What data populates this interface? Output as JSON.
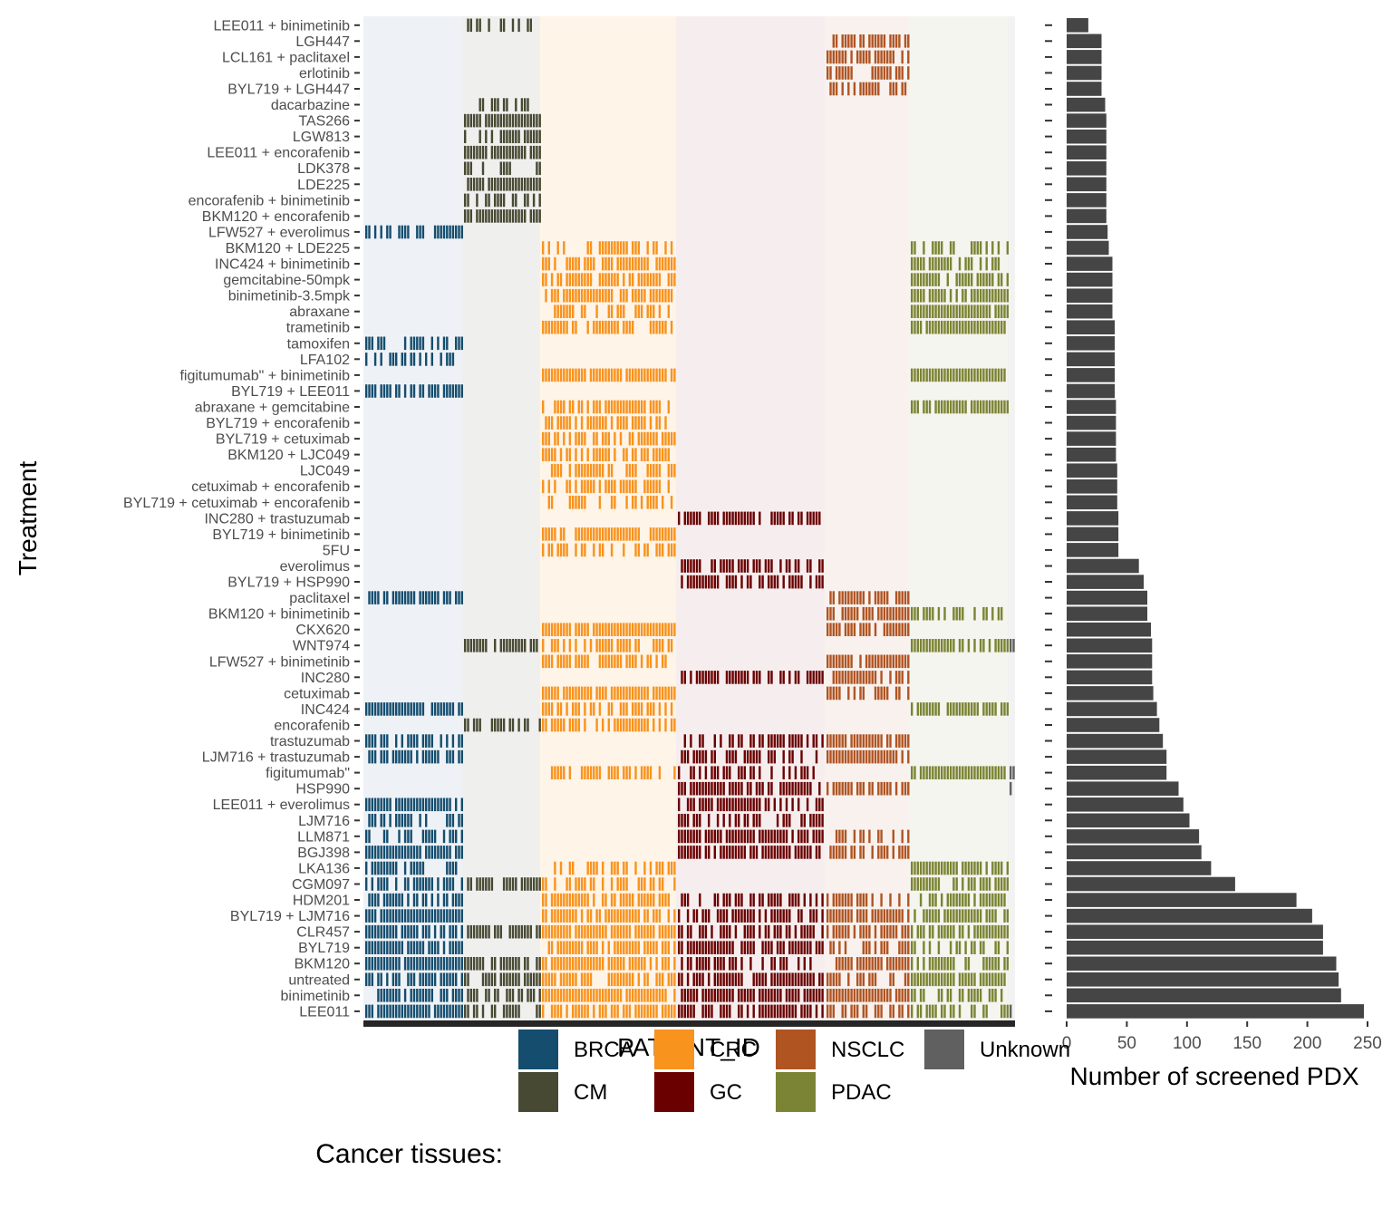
{
  "chart_data": [
    {
      "type": "heatmap",
      "xlabel": "PATIENT_ID",
      "ylabel": "Treatment",
      "x_tick_labels_shown": false,
      "y_order_top_to_bottom": [
        "LEE011 + binimetinib",
        "LGH447",
        "LCL161 + paclitaxel",
        "erlotinib",
        "BYL719 + LGH447",
        "dacarbazine",
        "TAS266",
        "LGW813",
        "LEE011 + encorafenib",
        "LDK378",
        "LDE225",
        "encorafenib + binimetinib",
        "BKM120 + encorafenib",
        "LFW527 + everolimus",
        "BKM120 + LDE225",
        "INC424 + binimetinib",
        "gemcitabine-50mpk",
        "binimetinib-3.5mpk",
        "abraxane",
        "trametinib",
        "tamoxifen",
        "LFA102",
        "figitumumab\" + binimetinib",
        "BYL719 + LEE011",
        "abraxane + gemcitabine",
        "BYL719 + encorafenib",
        "BYL719 + cetuximab",
        "BKM120 + LJC049",
        "LJC049",
        "cetuximab + encorafenib",
        "BYL719 + cetuximab + encorafenib",
        "INC280 + trastuzumab",
        "BYL719 + binimetinib",
        "5FU",
        "everolimus",
        "BYL719 + HSP990",
        "paclitaxel",
        "BKM120 + binimetinib",
        "CKX620",
        "WNT974",
        "LFW527 + binimetinib",
        "INC280",
        "cetuximab",
        "INC424",
        "encorafenib",
        "trastuzumab",
        "LJM716 + trastuzumab",
        "figitumumab\"",
        "HSP990",
        "LEE011 + everolimus",
        "LJM716",
        "LLM871",
        "BGJ398",
        "LKA136",
        "CGM097",
        "HDM201",
        "BYL719 + LJM716",
        "CLR457",
        "BYL719",
        "BKM120",
        "untreated",
        "binimetinib",
        "LEE011"
      ],
      "tissue_groups_left_to_right": [
        "BRCA",
        "CM",
        "CRC",
        "GC",
        "NSCLC",
        "PDAC",
        "Unknown"
      ],
      "tissue_colors": {
        "BRCA": "#154d6e",
        "CM": "#474932",
        "CRC": "#f8931e",
        "GC": "#6b0000",
        "NSCLC": "#b05422",
        "PDAC": "#7b8434",
        "Unknown": "#606060"
      },
      "tissue_by_treatment": {
        "LEE011 + binimetinib": [
          "CM"
        ],
        "LGH447": [
          "NSCLC"
        ],
        "LCL161 + paclitaxel": [
          "NSCLC"
        ],
        "erlotinib": [
          "NSCLC"
        ],
        "BYL719 + LGH447": [
          "NSCLC"
        ],
        "dacarbazine": [
          "CM"
        ],
        "TAS266": [
          "CM"
        ],
        "LGW813": [
          "CM"
        ],
        "LEE011 + encorafenib": [
          "CM"
        ],
        "LDK378": [
          "CM"
        ],
        "LDE225": [
          "CM"
        ],
        "encorafenib + binimetinib": [
          "CM"
        ],
        "BKM120 + encorafenib": [
          "CM"
        ],
        "LFW527 + everolimus": [
          "BRCA"
        ],
        "BKM120 + LDE225": [
          "CRC",
          "PDAC"
        ],
        "INC424 + binimetinib": [
          "CRC",
          "PDAC"
        ],
        "gemcitabine-50mpk": [
          "CRC",
          "PDAC"
        ],
        "binimetinib-3.5mpk": [
          "CRC",
          "PDAC"
        ],
        "abraxane": [
          "CRC",
          "PDAC"
        ],
        "trametinib": [
          "CRC",
          "PDAC",
          "Unknown"
        ],
        "tamoxifen": [
          "BRCA"
        ],
        "LFA102": [
          "BRCA"
        ],
        "figitumumab\" + binimetinib": [
          "CRC",
          "PDAC"
        ],
        "BYL719 + LEE011": [
          "BRCA"
        ],
        "abraxane + gemcitabine": [
          "CRC",
          "PDAC"
        ],
        "BYL719 + encorafenib": [
          "CRC"
        ],
        "BYL719 + cetuximab": [
          "CRC"
        ],
        "BKM120 + LJC049": [
          "CRC"
        ],
        "LJC049": [
          "CRC"
        ],
        "cetuximab + encorafenib": [
          "CRC"
        ],
        "BYL719 + cetuximab + encorafenib": [
          "CRC"
        ],
        "INC280 + trastuzumab": [
          "GC"
        ],
        "BYL719 + binimetinib": [
          "CRC"
        ],
        "5FU": [
          "CRC"
        ],
        "everolimus": [
          "GC"
        ],
        "BYL719 + HSP990": [
          "GC"
        ],
        "paclitaxel": [
          "BRCA",
          "NSCLC"
        ],
        "BKM120 + binimetinib": [
          "NSCLC",
          "PDAC"
        ],
        "CKX620": [
          "CRC",
          "NSCLC"
        ],
        "WNT974": [
          "CM",
          "CRC",
          "PDAC",
          "Unknown"
        ],
        "LFW527 + binimetinib": [
          "CRC",
          "NSCLC"
        ],
        "INC280": [
          "GC",
          "NSCLC"
        ],
        "cetuximab": [
          "CRC",
          "NSCLC"
        ],
        "INC424": [
          "BRCA",
          "CRC",
          "PDAC"
        ],
        "encorafenib": [
          "CM",
          "CRC"
        ],
        "trastuzumab": [
          "BRCA",
          "GC",
          "NSCLC"
        ],
        "LJM716 + trastuzumab": [
          "BRCA",
          "GC",
          "NSCLC"
        ],
        "figitumumab\"": [
          "CRC",
          "GC",
          "PDAC",
          "Unknown"
        ],
        "HSP990": [
          "GC",
          "NSCLC",
          "Unknown"
        ],
        "LEE011 + everolimus": [
          "BRCA",
          "GC"
        ],
        "LJM716": [
          "BRCA",
          "GC",
          "Unknown"
        ],
        "LLM871": [
          "BRCA",
          "GC",
          "NSCLC"
        ],
        "BGJ398": [
          "BRCA",
          "GC",
          "NSCLC"
        ],
        "LKA136": [
          "BRCA",
          "CRC",
          "PDAC",
          "Unknown"
        ],
        "CGM097": [
          "BRCA",
          "CM",
          "CRC",
          "PDAC"
        ],
        "HDM201": [
          "BRCA",
          "CRC",
          "GC",
          "NSCLC",
          "PDAC"
        ],
        "BYL719 + LJM716": [
          "BRCA",
          "CRC",
          "GC",
          "NSCLC",
          "PDAC"
        ],
        "CLR457": [
          "BRCA",
          "CM",
          "CRC",
          "GC",
          "NSCLC",
          "PDAC"
        ],
        "BYL719": [
          "BRCA",
          "CRC",
          "GC",
          "NSCLC",
          "PDAC"
        ],
        "BKM120": [
          "BRCA",
          "CM",
          "CRC",
          "GC",
          "NSCLC",
          "PDAC"
        ],
        "untreated": [
          "BRCA",
          "CM",
          "CRC",
          "GC",
          "NSCLC",
          "PDAC",
          "Unknown"
        ],
        "binimetinib": [
          "BRCA",
          "CM",
          "CRC",
          "GC",
          "NSCLC",
          "PDAC"
        ],
        "LEE011": [
          "BRCA",
          "CM",
          "CRC",
          "GC",
          "NSCLC",
          "PDAC",
          "Unknown"
        ]
      }
    },
    {
      "type": "bar",
      "orientation": "horizontal",
      "xlabel": "Number of screened PDX",
      "xlim": [
        0,
        250
      ],
      "x_ticks": [
        "0",
        "50",
        "100",
        "150",
        "200",
        "250"
      ],
      "categories_top_to_bottom": [
        "LEE011 + binimetinib",
        "LGH447",
        "LCL161 + paclitaxel",
        "erlotinib",
        "BYL719 + LGH447",
        "dacarbazine",
        "TAS266",
        "LGW813",
        "LEE011 + encorafenib",
        "LDK378",
        "LDE225",
        "encorafenib + binimetinib",
        "BKM120 + encorafenib",
        "LFW527 + everolimus",
        "BKM120 + LDE225",
        "INC424 + binimetinib",
        "gemcitabine-50mpk",
        "binimetinib-3.5mpk",
        "abraxane",
        "trametinib",
        "tamoxifen",
        "LFA102",
        "figitumumab\" + binimetinib",
        "BYL719 + LEE011",
        "abraxane + gemcitabine",
        "BYL719 + encorafenib",
        "BYL719 + cetuximab",
        "BKM120 + LJC049",
        "LJC049",
        "cetuximab + encorafenib",
        "BYL719 + cetuximab + encorafenib",
        "INC280 + trastuzumab",
        "BYL719 + binimetinib",
        "5FU",
        "everolimus",
        "BYL719 + HSP990",
        "paclitaxel",
        "BKM120 + binimetinib",
        "CKX620",
        "WNT974",
        "LFW527 + binimetinib",
        "INC280",
        "cetuximab",
        "INC424",
        "encorafenib",
        "trastuzumab",
        "LJM716 + trastuzumab",
        "figitumumab\"",
        "HSP990",
        "LEE011 + everolimus",
        "LJM716",
        "LLM871",
        "BGJ398",
        "LKA136",
        "CGM097",
        "HDM201",
        "BYL719 + LJM716",
        "CLR457",
        "BYL719",
        "BKM120",
        "untreated",
        "binimetinib",
        "LEE011"
      ],
      "values": [
        18,
        29,
        29,
        29,
        29,
        32,
        33,
        33,
        33,
        33,
        33,
        33,
        33,
        34,
        35,
        38,
        38,
        38,
        38,
        40,
        40,
        40,
        40,
        40,
        41,
        41,
        41,
        41,
        42,
        42,
        42,
        43,
        43,
        43,
        60,
        64,
        67,
        67,
        70,
        71,
        71,
        71,
        72,
        75,
        77,
        80,
        83,
        83,
        93,
        97,
        102,
        110,
        112,
        120,
        140,
        191,
        204,
        213,
        213,
        224,
        226,
        228,
        247
      ]
    }
  ],
  "legend": {
    "title": "Cancer tissues:",
    "items": [
      {
        "label": "BRCA",
        "color": "#154d6e"
      },
      {
        "label": "CM",
        "color": "#474932"
      },
      {
        "label": "CRC",
        "color": "#f8931e"
      },
      {
        "label": "GC",
        "color": "#6b0000"
      },
      {
        "label": "NSCLC",
        "color": "#b05422"
      },
      {
        "label": "PDAC",
        "color": "#7b8434"
      },
      {
        "label": "Unknown",
        "color": "#606060"
      }
    ]
  }
}
